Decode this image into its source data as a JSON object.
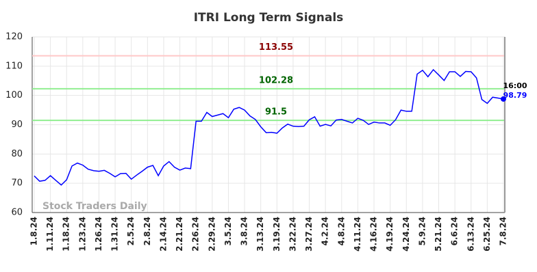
{
  "chart_data": {
    "type": "line",
    "title": "ITRI Long Term Signals",
    "categories": [
      "1.8.24",
      null,
      null,
      "1.11.24",
      null,
      null,
      "1.18.24",
      null,
      null,
      "1.23.24",
      null,
      null,
      "1.26.24",
      null,
      null,
      "1.31.24",
      null,
      null,
      "2.5.24",
      null,
      null,
      "2.8.24",
      null,
      null,
      "2.14.24",
      null,
      null,
      "2.21.24",
      null,
      null,
      "2.26.24",
      null,
      null,
      "2.29.24",
      null,
      null,
      "3.5.24",
      null,
      null,
      "3.8.24",
      null,
      null,
      "3.13.24",
      null,
      null,
      "3.19.24",
      null,
      null,
      "3.22.24",
      null,
      null,
      "3.27.24",
      null,
      null,
      "4.2.24",
      null,
      null,
      "4.8.24",
      null,
      null,
      "4.11.24",
      null,
      null,
      "4.16.24",
      null,
      null,
      "4.19.24",
      null,
      null,
      "4.24.24",
      null,
      null,
      "5.9.24",
      null,
      null,
      "5.21.24",
      null,
      null,
      "6.6.24",
      null,
      null,
      "6.13.24",
      null,
      null,
      "6.25.24",
      null,
      null,
      "7.8.24"
    ],
    "series": [
      {
        "color": "#0000ff",
        "values": [
          72.5,
          70.7,
          71,
          72.6,
          71,
          69.4,
          71.2,
          75.9,
          76.9,
          76.2,
          74.8,
          74.3,
          74.1,
          74.4,
          73.4,
          72.2,
          73.3,
          73.4,
          71.4,
          72.8,
          74.1,
          75.5,
          76.1,
          72.6,
          75.9,
          77.4,
          75.5,
          74.5,
          75.2,
          75,
          91.2,
          91.2,
          94.2,
          92.8,
          93.3,
          93.8,
          92.4,
          95.3,
          95.9,
          95,
          93,
          91.8,
          89.3,
          87.3,
          87.4,
          87.1,
          88.9,
          90.2,
          89.5,
          89.4,
          89.5,
          91.7,
          92.7,
          89.5,
          90.1,
          89.6,
          91.6,
          91.8,
          91.2,
          90.6,
          92.2,
          91.5,
          90.1,
          90.9,
          90.6,
          90.6,
          89.8,
          91.7,
          95,
          94.6,
          94.6,
          107.3,
          108.6,
          106.4,
          108.8,
          107,
          105.1,
          108.1,
          108.1,
          106.5,
          108.2,
          108.1,
          106,
          98.6,
          97.3,
          99.4,
          99.1,
          98.79
        ]
      }
    ],
    "last_time": "16:00",
    "reference_lines": [
      {
        "value": 113.55,
        "color": "#ffc8c8",
        "label_color": "#8b0000"
      },
      {
        "value": 102.28,
        "color": "#90ee90",
        "label_color": "#006400"
      },
      {
        "value": 91.5,
        "color": "#90ee90",
        "label_color": "#006400"
      }
    ],
    "watermark": "Stock Traders Daily",
    "ylim": [
      60,
      120
    ],
    "yticks": [
      60,
      70,
      80,
      90,
      100,
      110,
      120
    ],
    "grid": true
  }
}
